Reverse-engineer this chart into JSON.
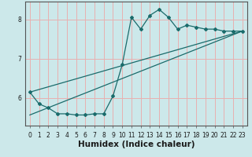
{
  "xlabel": "Humidex (Indice chaleur)",
  "xlim": [
    -0.5,
    23.5
  ],
  "ylim": [
    5.3,
    8.45
  ],
  "yticks": [
    6,
    7,
    8
  ],
  "xticks": [
    0,
    1,
    2,
    3,
    4,
    5,
    6,
    7,
    8,
    9,
    10,
    11,
    12,
    13,
    14,
    15,
    16,
    17,
    18,
    19,
    20,
    21,
    22,
    23
  ],
  "bg_color": "#cce8ea",
  "grid_color": "#e8b0b0",
  "line_color": "#1a6b6b",
  "line1": {
    "x": [
      0,
      1,
      2,
      3,
      4,
      5,
      6,
      7,
      8,
      9,
      10,
      11,
      12,
      13,
      14,
      15,
      16,
      17,
      18,
      19,
      20,
      21,
      22,
      23
    ],
    "y": [
      6.15,
      5.85,
      5.75,
      5.6,
      5.6,
      5.57,
      5.57,
      5.6,
      5.6,
      6.05,
      6.85,
      8.05,
      7.75,
      8.1,
      8.25,
      8.05,
      7.75,
      7.85,
      7.8,
      7.75,
      7.75,
      7.7,
      7.7,
      7.7
    ]
  },
  "line2": {
    "x": [
      0,
      23
    ],
    "y": [
      6.15,
      7.7
    ]
  },
  "line3": {
    "x": [
      0,
      23
    ],
    "y": [
      5.57,
      7.7
    ]
  }
}
